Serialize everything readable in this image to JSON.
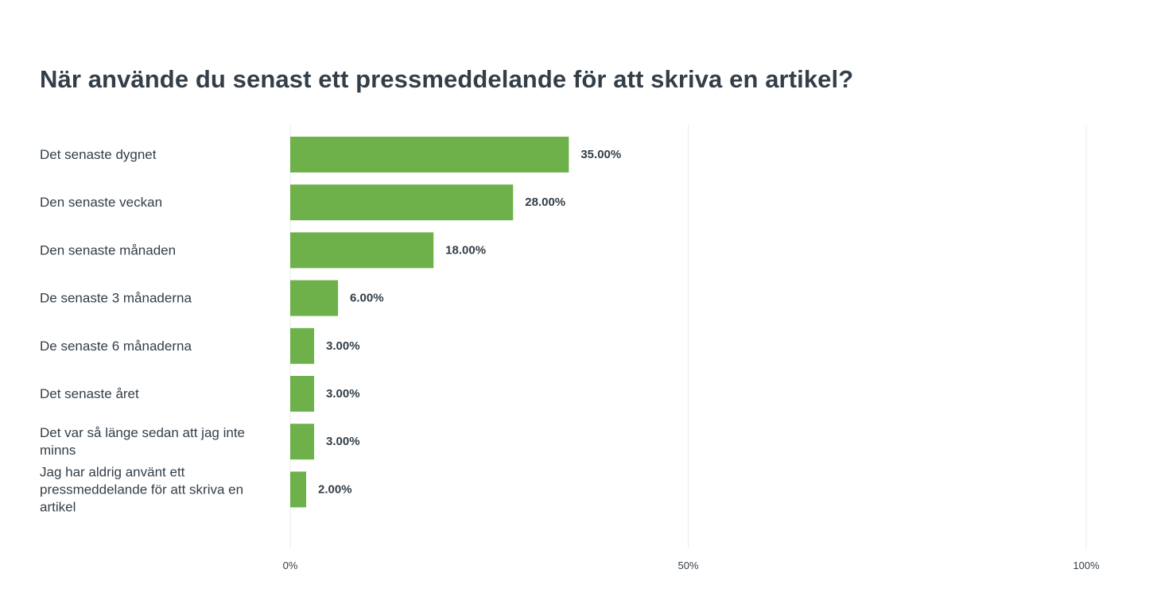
{
  "title": "När använde du senast ett pressmeddelande för att skriva en artikel?",
  "colors": {
    "bar": "#6eb14b",
    "text": "#333e48",
    "grid": "#ebebeb"
  },
  "chart_data": {
    "type": "bar",
    "orientation": "horizontal",
    "title": "När använde du senast ett pressmeddelande för att skriva en artikel?",
    "categories": [
      "Det senaste dygnet",
      "Den senaste veckan",
      "Den senaste månaden",
      "De senaste 3 månaderna",
      "De senaste 6 månaderna",
      "Det senaste året",
      "Det var så länge sedan att jag inte minns",
      "Jag har aldrig använt ett pressmeddelande för att skriva en artikel"
    ],
    "category_lines": [
      [
        "Det senaste dygnet"
      ],
      [
        "Den senaste veckan"
      ],
      [
        "Den senaste månaden"
      ],
      [
        "De senaste 3 månaderna"
      ],
      [
        "De senaste 6 månaderna"
      ],
      [
        "Det senaste året"
      ],
      [
        "Det var så länge sedan att jag inte",
        "minns"
      ],
      [
        "Jag har aldrig använt ett",
        "pressmeddelande för att skriva en",
        "artikel"
      ]
    ],
    "values": [
      35.0,
      28.0,
      18.0,
      6.0,
      3.0,
      3.0,
      3.0,
      2.0
    ],
    "value_labels": [
      "35.00%",
      "28.00%",
      "18.00%",
      "6.00%",
      "3.00%",
      "3.00%",
      "3.00%",
      "2.00%"
    ],
    "xlim": [
      0,
      100
    ],
    "x_ticks": [
      0,
      50,
      100
    ],
    "x_tick_labels": [
      "0%",
      "50%",
      "100%"
    ],
    "xlabel": "",
    "ylabel": "",
    "grid": true,
    "legend": "none"
  }
}
